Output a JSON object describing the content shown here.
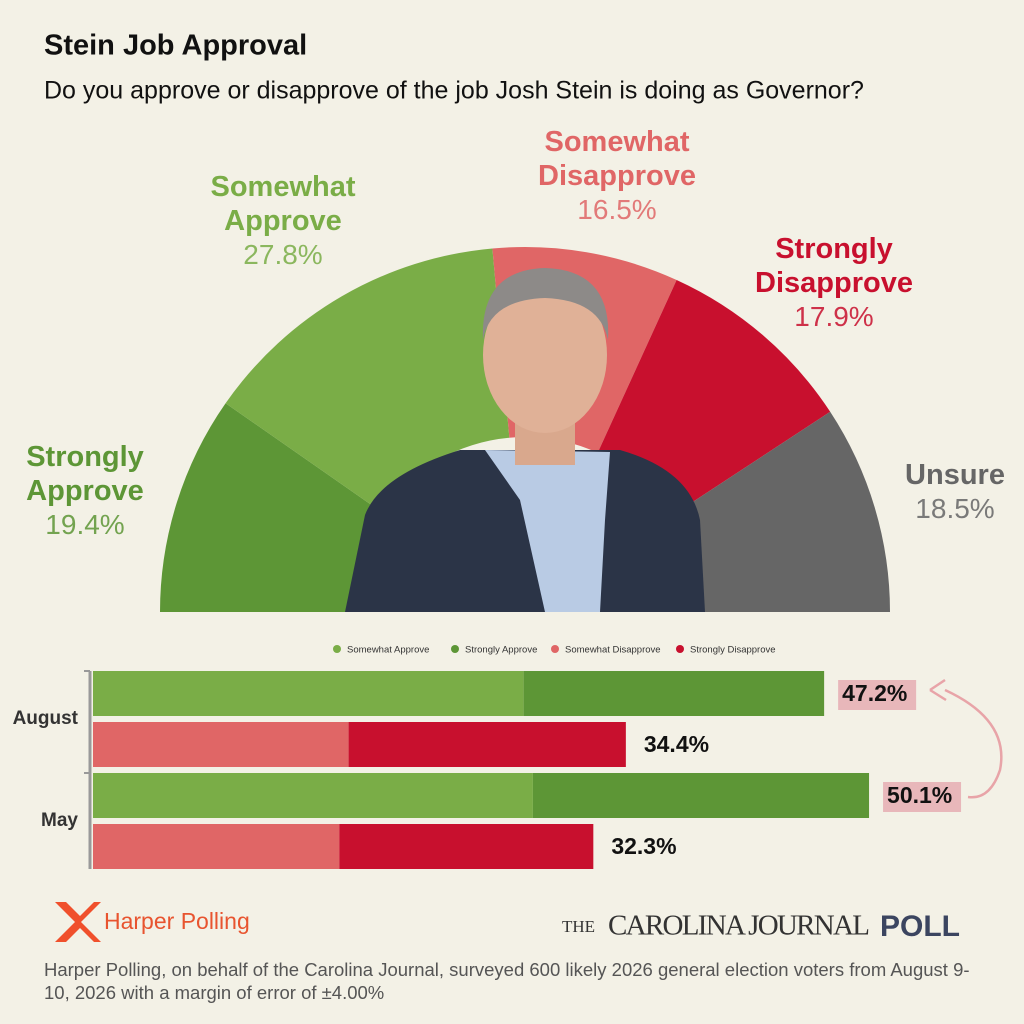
{
  "header": {
    "title": "Stein Job Approval",
    "subtitle": "Do you approve or disapprove of the job Josh Stein is doing as Governor?"
  },
  "chart_data": [
    {
      "type": "pie",
      "half": true,
      "categories": [
        "Strongly Approve",
        "Somewhat Approve",
        "Somewhat Disapprove",
        "Strongly Disapprove",
        "Unsure"
      ],
      "values": [
        19.4,
        27.8,
        16.5,
        17.9,
        18.5
      ],
      "value_labels": [
        "19.4%",
        "27.8%",
        "16.5%",
        "17.9%",
        "18.5%"
      ],
      "colors": [
        "#5d9636",
        "#7aad47",
        "#e06666",
        "#c8102e",
        "#666666"
      ]
    },
    {
      "type": "bar",
      "orientation": "horizontal",
      "categories": [
        "August",
        "May"
      ],
      "series": [
        {
          "name": "Somewhat Approve",
          "color": "#7aad47",
          "values": [
            27.8,
            28.4
          ]
        },
        {
          "name": "Strongly Approve",
          "color": "#5d9636",
          "values": [
            19.4,
            21.7
          ]
        },
        {
          "name": "Somewhat Disapprove",
          "color": "#e06666",
          "values": [
            16.5,
            15.9
          ]
        },
        {
          "name": "Strongly Disapprove",
          "color": "#c8102e",
          "values": [
            17.9,
            16.4
          ]
        }
      ],
      "approve_totals": [
        47.2,
        50.1
      ],
      "approve_total_labels": [
        "47.2%",
        "50.1%"
      ],
      "disapprove_totals": [
        34.4,
        32.3
      ],
      "disapprove_total_labels": [
        "34.4%",
        "32.3%"
      ]
    }
  ],
  "footer": {
    "pollster": "Harper Polling",
    "journal_prefix": "THE",
    "journal": "CAROLINA JOURNAL",
    "poll": "POLL",
    "note": "Harper Polling, on behalf of the Carolina Journal, surveyed 600 likely 2026 general election voters from August 9-10, 2026 with a margin of error of ±4.00%"
  }
}
